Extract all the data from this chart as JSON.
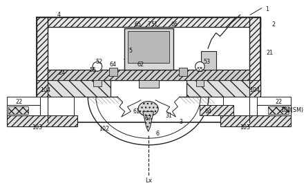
{
  "bg_color": "#ffffff",
  "line_color": "#222222",
  "fig_width": 4.43,
  "fig_height": 2.75,
  "dpi": 100
}
